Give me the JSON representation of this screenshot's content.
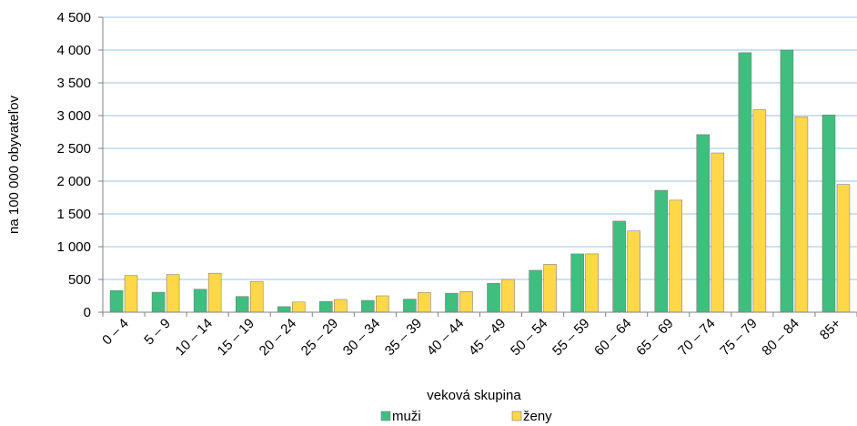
{
  "chart_data": {
    "type": "bar",
    "title": "",
    "xlabel": "veková skupina",
    "ylabel": "na 100 000 obyvateľov",
    "ylim": [
      0,
      4500
    ],
    "yticks": [
      0,
      500,
      1000,
      1500,
      2000,
      2500,
      3000,
      3500,
      4000,
      4500
    ],
    "ytick_labels": [
      "0",
      "500",
      "1 000",
      "1 500",
      "2 000",
      "2 500",
      "3 000",
      "3 500",
      "4 000",
      "4 500"
    ],
    "grid": "horizontal",
    "legend_position": "bottom",
    "categories": [
      "0 – 4",
      "5 – 9",
      "10 – 14",
      "15 – 19",
      "20 – 24",
      "25 – 29",
      "30 – 34",
      "35 – 39",
      "40 – 44",
      "45 – 49",
      "50 – 54",
      "55 – 59",
      "60 – 64",
      "65 – 69",
      "70 – 74",
      "75 – 79",
      "80 – 84",
      "85+"
    ],
    "series": [
      {
        "name": "muži",
        "color": "#3fbf7f",
        "values": [
          330,
          305,
          350,
          240,
          85,
          165,
          180,
          200,
          290,
          440,
          640,
          890,
          1390,
          1860,
          2710,
          3960,
          4000,
          3010
        ]
      },
      {
        "name": "ženy",
        "color": "#ffd84a",
        "values": [
          560,
          575,
          595,
          470,
          155,
          195,
          250,
          300,
          315,
          500,
          730,
          890,
          1240,
          1710,
          2430,
          3090,
          2980,
          1950
        ]
      }
    ]
  },
  "colors": {
    "gridline": "#9dc3e6",
    "axis": "#808080"
  }
}
